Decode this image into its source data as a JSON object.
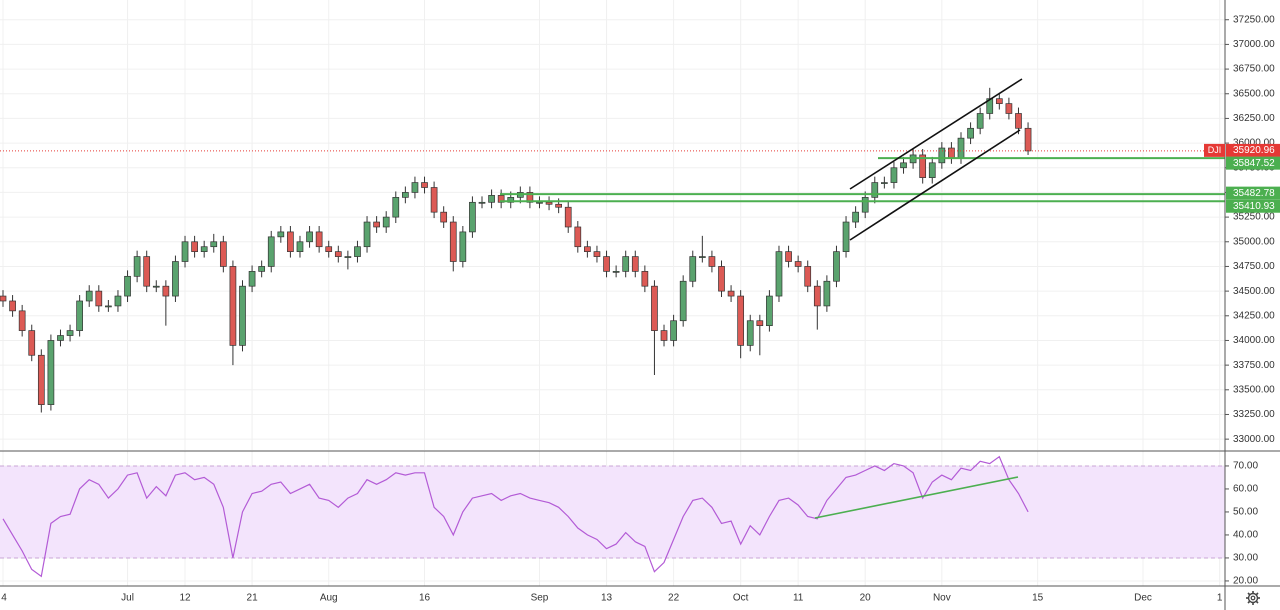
{
  "chart_data": [
    {
      "type": "candlestick",
      "symbol": "DJI",
      "categories": [
        "4",
        null,
        null,
        null,
        null,
        null,
        null,
        null,
        null,
        null,
        null,
        null,
        null,
        "Jul",
        null,
        null,
        null,
        null,
        null,
        "12",
        null,
        null,
        null,
        null,
        null,
        null,
        "21",
        null,
        null,
        null,
        null,
        null,
        null,
        null,
        "Aug",
        null,
        null,
        null,
        null,
        null,
        null,
        null,
        null,
        null,
        "16",
        null,
        null,
        null,
        null,
        null,
        null,
        null,
        null,
        null,
        null,
        null,
        "Sep",
        null,
        null,
        null,
        null,
        null,
        null,
        "13",
        null,
        null,
        null,
        null,
        null,
        null,
        "22",
        null,
        null,
        null,
        null,
        null,
        null,
        "Oct",
        null,
        null,
        null,
        null,
        null,
        "11",
        null,
        null,
        null,
        null,
        null,
        null,
        "20",
        null,
        null,
        null,
        null,
        null,
        null,
        null,
        "Nov",
        null,
        null,
        null,
        null,
        null,
        null,
        null,
        null,
        null,
        "15",
        null,
        null,
        null,
        null,
        null,
        null,
        null,
        null,
        null,
        null,
        "Dec",
        null,
        null,
        null,
        null,
        null,
        null,
        null,
        "1"
      ],
      "open": [
        34450,
        34400,
        34300,
        34100,
        33850,
        33350,
        34000,
        34050,
        34100,
        34400,
        34500,
        34350,
        34350,
        34450,
        34650,
        34850,
        34550,
        34550,
        34450,
        34800,
        35000,
        34900,
        34950,
        35000,
        34750,
        33950,
        34550,
        34700,
        34750,
        35050,
        35100,
        34900,
        35000,
        35100,
        34950,
        34900,
        34850,
        34850,
        34950,
        35200,
        35150,
        35250,
        35450,
        35500,
        35600,
        35550,
        35300,
        35200,
        34800,
        35100,
        35400,
        35400,
        35470,
        35400,
        35450,
        35500,
        35400,
        35400,
        35380,
        35350,
        35150,
        34950,
        34900,
        34850,
        34700,
        34700,
        34850,
        34700,
        34550,
        34100,
        34000,
        34200,
        34600,
        34850,
        34850,
        34750,
        34500,
        34450,
        33950,
        34200,
        34150,
        34450,
        34900,
        34800,
        34750,
        34550,
        34350,
        34600,
        34900,
        35200,
        35300,
        35450,
        35600,
        35600,
        35750,
        35800,
        35880,
        35650,
        35800,
        35950,
        35850,
        36050,
        36150,
        36300,
        36450,
        36400,
        36300,
        36150,
        null,
        null,
        null,
        null,
        null,
        null,
        null,
        null,
        null,
        null,
        null,
        null,
        null,
        null,
        null,
        null,
        null,
        null,
        null,
        null
      ],
      "high": [
        34510,
        34460,
        34360,
        34160,
        33910,
        34060,
        34110,
        34160,
        34460,
        34560,
        34560,
        34410,
        34510,
        34710,
        34910,
        34910,
        34610,
        34610,
        34860,
        35060,
        35060,
        35010,
        35080,
        35060,
        34810,
        34610,
        34760,
        34810,
        35110,
        35160,
        35160,
        35060,
        35160,
        35160,
        35010,
        34960,
        34910,
        35010,
        35260,
        35260,
        35310,
        35510,
        35560,
        35660,
        35660,
        35610,
        35360,
        35260,
        35160,
        35460,
        35460,
        35530,
        35530,
        35510,
        35560,
        35560,
        35460,
        35460,
        35440,
        35410,
        35210,
        35010,
        34960,
        34910,
        34760,
        34910,
        34910,
        34760,
        34610,
        34160,
        34260,
        34660,
        34910,
        35060,
        34910,
        34810,
        34560,
        34510,
        34260,
        34260,
        34510,
        34960,
        34960,
        34860,
        34810,
        34610,
        34660,
        34960,
        35260,
        35360,
        35510,
        35660,
        35660,
        35810,
        35860,
        35940,
        35940,
        35860,
        36010,
        36010,
        36110,
        36210,
        36360,
        36560,
        36510,
        36460,
        36360,
        36210,
        null,
        null,
        null,
        null,
        null,
        null,
        null,
        null,
        null,
        null,
        null,
        null,
        null,
        null,
        null,
        null,
        null,
        null,
        null,
        null
      ],
      "low": [
        34340,
        34240,
        34040,
        33790,
        33270,
        33290,
        33940,
        33990,
        34040,
        34340,
        34290,
        34290,
        34290,
        34390,
        34590,
        34490,
        34490,
        34150,
        34390,
        34740,
        34840,
        34840,
        34890,
        34690,
        33750,
        33890,
        34490,
        34640,
        34690,
        34990,
        34840,
        34840,
        34940,
        34890,
        34840,
        34790,
        34720,
        34790,
        34890,
        35090,
        35090,
        35190,
        35390,
        35440,
        35490,
        35240,
        35140,
        34700,
        34740,
        35040,
        35340,
        35340,
        35340,
        35340,
        35390,
        35340,
        35340,
        35320,
        35290,
        35090,
        34890,
        34840,
        34790,
        34640,
        34640,
        34640,
        34640,
        34490,
        33650,
        33940,
        33940,
        34140,
        34540,
        34790,
        34690,
        34440,
        34390,
        33820,
        33890,
        33850,
        34090,
        34390,
        34740,
        34690,
        34490,
        34110,
        34290,
        34540,
        34840,
        35140,
        35240,
        35390,
        35540,
        35540,
        35690,
        35740,
        35590,
        35590,
        35740,
        35790,
        35790,
        35990,
        36090,
        36240,
        36340,
        36240,
        36090,
        35880,
        null,
        null,
        null,
        null,
        null,
        null,
        null,
        null,
        null,
        null,
        null,
        null,
        null,
        null,
        null,
        null,
        null,
        null,
        null,
        null
      ],
      "close": [
        34400,
        34300,
        34100,
        33850,
        33350,
        34000,
        34050,
        34100,
        34400,
        34500,
        34350,
        34350,
        34450,
        34650,
        34850,
        34550,
        34550,
        34450,
        34800,
        35000,
        34900,
        34950,
        35000,
        34750,
        33950,
        34550,
        34700,
        34750,
        35050,
        35100,
        34900,
        35000,
        35100,
        34950,
        34900,
        34850,
        34850,
        34950,
        35200,
        35150,
        35250,
        35450,
        35500,
        35600,
        35550,
        35300,
        35200,
        34800,
        35100,
        35400,
        35400,
        35470,
        35400,
        35450,
        35500,
        35400,
        35400,
        35380,
        35350,
        35150,
        34950,
        34900,
        34850,
        34700,
        34700,
        34850,
        34700,
        34550,
        34100,
        34000,
        34200,
        34600,
        34850,
        34850,
        34750,
        34500,
        34450,
        33950,
        34200,
        34150,
        34450,
        34900,
        34800,
        34750,
        34550,
        34350,
        34600,
        34900,
        35200,
        35300,
        35450,
        35600,
        35600,
        35750,
        35800,
        35880,
        35650,
        35800,
        35950,
        35850,
        36050,
        36150,
        36300,
        36450,
        36400,
        36300,
        36150,
        35920.96,
        null,
        null,
        null,
        null,
        null,
        null,
        null,
        null,
        null,
        null,
        null,
        null,
        null,
        null,
        null,
        null,
        null,
        null,
        null,
        null
      ],
      "up_color": "#5aa36e",
      "down_color": "#dc5a55",
      "last_color": "#e53935",
      "level_color": "#4caf50",
      "levels": [
        35847.52,
        35482.78,
        35410.93
      ],
      "ylim": [
        32890,
        37450
      ],
      "yticks": [
        {
          "value": 33000,
          "label": "33000.00"
        },
        {
          "value": 33250,
          "label": "33250.00"
        },
        {
          "value": 33500,
          "label": "33500.00"
        },
        {
          "value": 33750,
          "label": "33750.00"
        },
        {
          "value": 34000,
          "label": "34000.00"
        },
        {
          "value": 34250,
          "label": "34250.00"
        },
        {
          "value": 34500,
          "label": "34500.00"
        },
        {
          "value": 34750,
          "label": "34750.00"
        },
        {
          "value": 35000,
          "label": "35000.00"
        },
        {
          "value": 35250,
          "label": "35250.00"
        },
        {
          "value": 35500,
          "label": "35500.00"
        },
        {
          "value": 35750,
          "label": "35750.00"
        },
        {
          "value": 36000,
          "label": "36000.00"
        },
        {
          "value": 36250,
          "label": "36250.00"
        },
        {
          "value": 36500,
          "label": "36500.00"
        },
        {
          "value": 36750,
          "label": "36750.00"
        },
        {
          "value": 37000,
          "label": "37000.00"
        },
        {
          "value": 37250,
          "label": "37250.00"
        }
      ],
      "grid": true
    },
    {
      "type": "line",
      "values": [
        47,
        40,
        33,
        25,
        22,
        45,
        48,
        49,
        60,
        64,
        62,
        56,
        60,
        66,
        67,
        56,
        61,
        57,
        66,
        67,
        64,
        65,
        62,
        52,
        30,
        50,
        58,
        59,
        62,
        63,
        58,
        60,
        62,
        56,
        55,
        52,
        56,
        58,
        64,
        62,
        64,
        67,
        66,
        67,
        67,
        52,
        48,
        40,
        50,
        56,
        57,
        58,
        55,
        57,
        58,
        56,
        55,
        54,
        52,
        48,
        43,
        40,
        38,
        34,
        36,
        41,
        37,
        35,
        24,
        28,
        38,
        48,
        55,
        56,
        52,
        45,
        46,
        36,
        44,
        40,
        48,
        55,
        56,
        53,
        48,
        47,
        55,
        60,
        65,
        66,
        68,
        70,
        68,
        71,
        70,
        67,
        56,
        63,
        66,
        64,
        69,
        68,
        72,
        71,
        74,
        64,
        58,
        50,
        null,
        null,
        null,
        null,
        null,
        null,
        null,
        null,
        null,
        null,
        null,
        null,
        null,
        null,
        null,
        null,
        null,
        null,
        null,
        null
      ],
      "color": "#b35bd6",
      "band": [
        30,
        70
      ],
      "band_color": "#f3e4fc",
      "ylim": [
        17.8,
        76.5
      ],
      "yticks": [
        {
          "value": 20,
          "label": "20.00"
        },
        {
          "value": 30,
          "label": "30.00"
        },
        {
          "value": 40,
          "label": "40.00"
        },
        {
          "value": 50,
          "label": "50.00"
        },
        {
          "value": 60,
          "label": "60.00"
        },
        {
          "value": 70,
          "label": "70.00"
        }
      ],
      "grid": true
    }
  ]
}
